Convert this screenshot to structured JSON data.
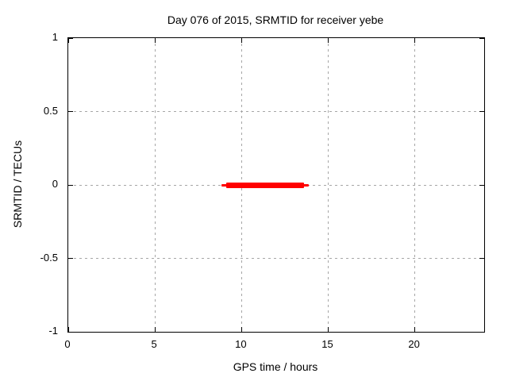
{
  "window": {
    "background_color": "#ffffff",
    "foreground_color": "#000000"
  },
  "chart_data": {
    "type": "line",
    "title": "Day 076 of 2015, SRMTID for receiver yebe",
    "xlabel": "GPS time / hours",
    "ylabel": "SRMTID / TECUs",
    "xlim": [
      0,
      24
    ],
    "ylim": [
      -1,
      1
    ],
    "xticks": [
      0,
      5,
      10,
      15,
      20
    ],
    "yticks": [
      -1,
      -0.5,
      0,
      0.5,
      1
    ],
    "grid": true,
    "grid_color": "#a6a6a6",
    "legend": "none",
    "series": [
      {
        "name": "SRMTID underlying trace",
        "color": "#ff0000",
        "y": 0.0,
        "x_start": 8.85,
        "x_end": 13.9,
        "thickness": "thin"
      },
      {
        "name": "SRMTID data segment",
        "color": "#ff0000",
        "y": 0.0,
        "x_start": 9.1,
        "x_end": 13.6,
        "thickness": "thick"
      }
    ]
  }
}
